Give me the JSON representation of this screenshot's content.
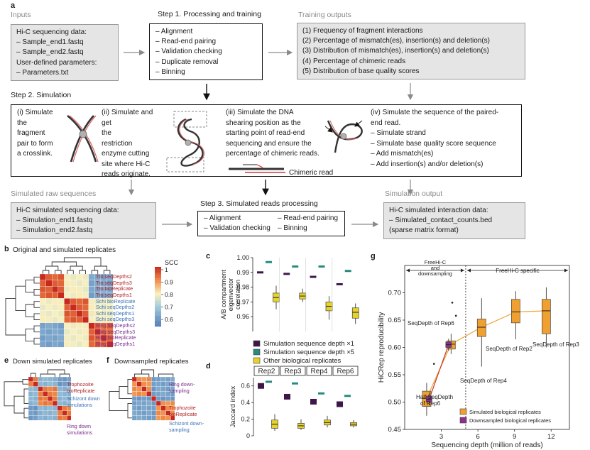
{
  "panel_a": {
    "letter": "a",
    "inputs": {
      "title": "Inputs",
      "lines": [
        "Hi-C sequencing data:",
        "– Sample_end1.fastq",
        "– Sample_end2.fastq",
        "User-defined parameters:",
        "– Parameters.txt"
      ]
    },
    "step1": {
      "title": "Step 1. Processing and training",
      "lines": [
        "– Alignment",
        "– Read-end pairing",
        "– Validation checking",
        "– Duplicate removal",
        "– Binning"
      ]
    },
    "training_outputs": {
      "title": "Training outputs",
      "lines": [
        "(1) Frequency of fragment interactions",
        "(2) Percentage of mismatch(es), insertion(s) and deletion(s)",
        "(3) Distribution of mismatch(es), insertion(s) and deletion(s)",
        "(4) Percentage of chimeric reads",
        "(5) Distribution of base quality scores"
      ]
    },
    "step2": {
      "title": "Step 2. Simulation",
      "col1": [
        "(i) Simulate",
        "the",
        "fragment",
        "pair to form",
        "a crosslink."
      ],
      "col2": [
        "(ii) Simulate and",
        "get",
        "the",
        "restriction",
        "enzyme cutting",
        "site where Hi-C",
        "reads originate."
      ],
      "col3": [
        "(iii) Simulate the DNA",
        "shearing position as the",
        "starting point of read-end",
        "sequencing and ensure the",
        "percentage of chimeric reads."
      ],
      "chimeric_label": "Chimeric read",
      "col4": [
        "(iv) Simulate the sequence of the paired-",
        "end read.",
        "– Simulate strand",
        "– Simulate base quality score sequence",
        "– Add mismatch(es)",
        "– Add insertion(s) and/or deletion(s)"
      ]
    },
    "raw": {
      "title": "Simulated raw sequences",
      "lines": [
        "Hi-C simulated sequencing data:",
        "– Simulation_end1.fastq",
        "– Simulation_end2.fastq"
      ]
    },
    "step3": {
      "title": "Step 3. Simulated reads processing",
      "col1": [
        "– Alignment",
        "– Validation checking"
      ],
      "col2": [
        "– Read-end pairing",
        "– Binning"
      ]
    },
    "sim_output": {
      "title": "Simulation output",
      "lines": [
        "Hi-C simulated interaction data:",
        "– Simulated_contact_counts.bed",
        "(sparse matrix format)"
      ]
    }
  },
  "panel_b": {
    "letter": "b",
    "title": "Original and simulated replicates",
    "colorbar_title": "SCC",
    "colorbar_ticks": [
      "1",
      "0.9",
      "0.8",
      "0.7",
      "0.6"
    ],
    "row_labels": [
      {
        "text": "Tro seqDepths2",
        "color": "#b22222"
      },
      {
        "text": "Tro seqDepths3",
        "color": "#b22222"
      },
      {
        "text": "Tro bioReplicate",
        "color": "#b22222"
      },
      {
        "text": "Tro seqDepths1",
        "color": "#b22222"
      },
      {
        "text": "Schi bioReplicate",
        "color": "#3a72b8"
      },
      {
        "text": "Schi seqDepths2",
        "color": "#3a72b8"
      },
      {
        "text": "Schi seqDepths1",
        "color": "#3a72b8"
      },
      {
        "text": "Schi seqDepths3",
        "color": "#3a72b8"
      },
      {
        "text": "Ring seqDepths2",
        "color": "#7b2d8e"
      },
      {
        "text": "Ring seqDepths3",
        "color": "#7b2d8e"
      },
      {
        "text": "Ring bioReplicate",
        "color": "#7b2d8e"
      },
      {
        "text": "Ring seqDepths1",
        "color": "#7b2d8e"
      }
    ]
  },
  "panel_e": {
    "letter": "e",
    "title": "Down simulated replicates",
    "labels": [
      {
        "text": "Trophozoite bioReplicate",
        "color": "#b22222"
      },
      {
        "text": "Schizont down simulations",
        "color": "#3a72b8"
      },
      {
        "text": "Ring down simulations",
        "color": "#7b2d8e"
      }
    ]
  },
  "panel_f": {
    "letter": "f",
    "title": "Downsampled replicates",
    "labels": [
      {
        "text": "Ring down-sampling",
        "color": "#7b2d8e"
      },
      {
        "text": "Trophozoite bioReplicate",
        "color": "#b22222"
      },
      {
        "text": "Schizont down-sampling",
        "color": "#3a72b8"
      }
    ]
  },
  "colors": {
    "trophozoite": "#b22222",
    "schizont": "#3a72b8",
    "ring": "#7b2d8e",
    "sim_x1": "#3d1748",
    "sim_x5": "#2a8a80",
    "bio": "#e6d22c",
    "sim_bio": "#f0a030",
    "down_bio": "#8e2f8e"
  },
  "chart_data": [
    {
      "panel": "c",
      "type": "box",
      "ylabel": "A/B compartment eigenvector correlation",
      "ylim": [
        0.95,
        1.0
      ],
      "yticks": [
        "1.00",
        "0.99",
        "0.98",
        "0.97",
        "0.96"
      ],
      "groups": 4,
      "series": [
        {
          "name": "Simulation sequence depth ×1",
          "medians": [
            0.99,
            0.989,
            0.987,
            0.982
          ]
        },
        {
          "name": "Simulation sequence depth ×5",
          "medians": [
            0.997,
            0.994,
            0.994,
            0.991
          ]
        },
        {
          "name": "Other biological replicates",
          "boxes": [
            {
              "min": 0.965,
              "q1": 0.97,
              "median": 0.973,
              "q3": 0.976,
              "max": 0.981
            },
            {
              "min": 0.97,
              "q1": 0.972,
              "median": 0.974,
              "q3": 0.976,
              "max": 0.979
            },
            {
              "min": 0.958,
              "q1": 0.964,
              "median": 0.967,
              "q3": 0.97,
              "max": 0.974
            },
            {
              "min": 0.955,
              "q1": 0.959,
              "median": 0.963,
              "q3": 0.966,
              "max": 0.969
            }
          ]
        }
      ]
    },
    {
      "panel": "d",
      "type": "box",
      "ylabel": "Jaccard index",
      "ylim": [
        0,
        0.7
      ],
      "yticks": [
        "0.6",
        "0.4",
        "0.2",
        "0"
      ],
      "categories": [
        "Rep2",
        "Rep3",
        "Rep4",
        "Rep6"
      ],
      "series": [
        {
          "name": "Simulation sequence depth ×1",
          "medians": [
            0.6,
            0.47,
            0.41,
            0.38
          ]
        },
        {
          "name": "Simulation sequence depth ×5",
          "medians": [
            0.65,
            0.63,
            0.51,
            0.48
          ]
        },
        {
          "name": "Other biological replicates",
          "boxes": [
            {
              "min": 0.06,
              "q1": 0.09,
              "median": 0.14,
              "q3": 0.19,
              "max": 0.26
            },
            {
              "min": 0.07,
              "q1": 0.09,
              "median": 0.12,
              "q3": 0.15,
              "max": 0.2
            },
            {
              "min": 0.1,
              "q1": 0.13,
              "median": 0.16,
              "q3": 0.19,
              "max": 0.24
            },
            {
              "min": 0.1,
              "q1": 0.12,
              "median": 0.14,
              "q3": 0.16,
              "max": 0.19
            }
          ]
        }
      ]
    },
    {
      "panel": "g",
      "type": "box",
      "xlabel": "Sequencing depth (million of reads)",
      "ylabel": "HiCRep reproducibility",
      "xlim": [
        0,
        13.5
      ],
      "ylim": [
        0.45,
        0.75
      ],
      "xticks": [
        3,
        6,
        9,
        12
      ],
      "yticks": [
        0.45,
        0.5,
        0.55,
        0.6,
        0.65,
        0.7
      ],
      "region_left_label": "FreeHi-C and downsampling",
      "region_right_label": "FreeHi-C specific",
      "region_divider_x": 5,
      "annotations": [
        "SeqDepth of Rep6",
        "Half SeqDepth of Rep6",
        "SeqDepth of Rep4",
        "SeqDepth of Rep2",
        "SeqDepth of Rep3"
      ],
      "series": [
        {
          "name": "Simulated biological replicates",
          "boxes": [
            {
              "x": 1.8,
              "min": 0.475,
              "q1": 0.492,
              "median": 0.507,
              "q3": 0.52,
              "max": 0.535
            },
            {
              "x": 3.8,
              "min": 0.588,
              "q1": 0.597,
              "median": 0.606,
              "q3": 0.612,
              "max": 0.625
            },
            {
              "x": 6.3,
              "min": 0.565,
              "q1": 0.62,
              "median": 0.637,
              "q3": 0.652,
              "max": 0.69
            },
            {
              "x": 9.1,
              "min": 0.615,
              "q1": 0.645,
              "median": 0.665,
              "q3": 0.688,
              "max": 0.703
            },
            {
              "x": 11.6,
              "min": 0.6,
              "q1": 0.625,
              "median": 0.667,
              "q3": 0.688,
              "max": 0.71
            }
          ]
        },
        {
          "name": "Downsampled biological replicates",
          "boxes": [
            {
              "x": 2.0,
              "min": 0.494,
              "q1": 0.5,
              "median": 0.505,
              "q3": 0.511,
              "max": 0.518
            },
            {
              "x": 3.6,
              "min": 0.594,
              "q1": 0.6,
              "median": 0.605,
              "q3": 0.61,
              "max": 0.616
            }
          ]
        }
      ]
    }
  ]
}
